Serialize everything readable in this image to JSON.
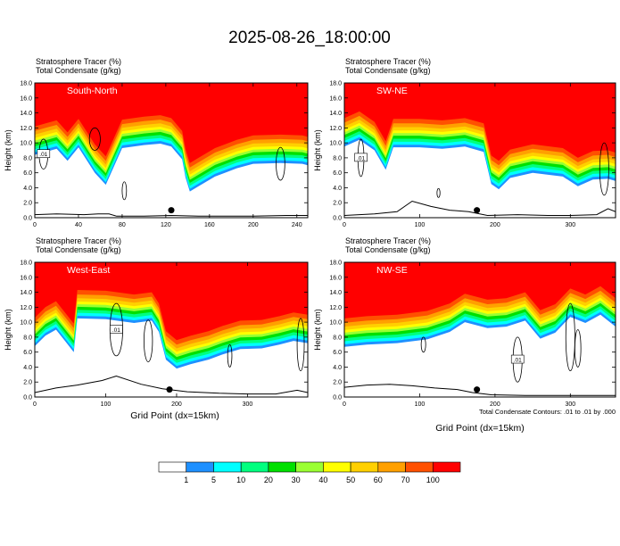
{
  "title": "2025-08-26_18:00:00",
  "colors": {
    "palette": [
      "#ffffff",
      "#1e90ff",
      "#00ffff",
      "#00ff7f",
      "#00e000",
      "#9aff32",
      "#ffff00",
      "#ffd000",
      "#ffa000",
      "#ff5000",
      "#ff0000"
    ],
    "contour": "#000000"
  },
  "colorbar": {
    "levels": [
      "1",
      "5",
      "10",
      "20",
      "30",
      "40",
      "50",
      "60",
      "70",
      "100"
    ]
  },
  "footnote": "Total Condensate Contours: .01 to .01 by .000",
  "chart_data": [
    {
      "type": "heatmap",
      "id": "sn",
      "header1": "Stratosphere Tracer   (%)",
      "header2": "Total Condensate   (g/kg)",
      "label": "South-North",
      "ylabel": "Height (km)",
      "xlabel": "",
      "xlim": [
        0,
        250
      ],
      "ylim": [
        0,
        18
      ],
      "xticks": [
        "0",
        "40",
        "80",
        "120",
        "160",
        "200",
        "240"
      ],
      "xtick_values": [
        0,
        40,
        80,
        120,
        160,
        200,
        240
      ],
      "yticks": [
        "0.0",
        "2.0",
        "4.0",
        "6.0",
        "8.0",
        "10.0",
        "12.0",
        "14.0",
        "16.0",
        "18.0"
      ],
      "tracer_base": [
        [
          0,
          12.2
        ],
        [
          10,
          12.6
        ],
        [
          20,
          13.0
        ],
        [
          30,
          11.4
        ],
        [
          40,
          13.2
        ],
        [
          55,
          9.8
        ],
        [
          65,
          8.2
        ],
        [
          80,
          13.1
        ],
        [
          100,
          13.5
        ],
        [
          115,
          13.7
        ],
        [
          125,
          13.3
        ],
        [
          135,
          11.6
        ],
        [
          138,
          9.2
        ],
        [
          142,
          7.3
        ],
        [
          150,
          8.0
        ],
        [
          165,
          9.3
        ],
        [
          185,
          10.4
        ],
        [
          200,
          11.0
        ],
        [
          225,
          11.1
        ],
        [
          245,
          11.0
        ],
        [
          250,
          10.8
        ]
      ],
      "terrain": [
        [
          0,
          0.4
        ],
        [
          20,
          0.5
        ],
        [
          45,
          0.4
        ],
        [
          58,
          0.5
        ],
        [
          68,
          0.5
        ],
        [
          75,
          0.2
        ],
        [
          100,
          0.2
        ],
        [
          125,
          0.3
        ],
        [
          150,
          0.2
        ],
        [
          175,
          0.2
        ],
        [
          200,
          0.2
        ],
        [
          230,
          0.3
        ],
        [
          250,
          0.3
        ]
      ],
      "contour_label": ".01",
      "marker_x": 125,
      "marker_y": 1.0
    },
    {
      "type": "heatmap",
      "id": "swne",
      "header1": "Stratosphere Tracer   (%)",
      "header2": "Total Condensate   (g/kg)",
      "label": "SW-NE",
      "ylabel": "Height (km)",
      "xlabel": "",
      "xlim": [
        0,
        360
      ],
      "ylim": [
        0,
        18
      ],
      "xticks": [
        "0",
        "100",
        "200",
        "300"
      ],
      "xtick_values": [
        0,
        100,
        200,
        300
      ],
      "yticks": [
        "0.0",
        "2.0",
        "4.0",
        "6.0",
        "8.0",
        "10.0",
        "12.0",
        "14.0",
        "16.0",
        "18.0"
      ],
      "tracer_base": [
        [
          0,
          13.3
        ],
        [
          20,
          14.2
        ],
        [
          40,
          12.8
        ],
        [
          55,
          10.2
        ],
        [
          65,
          13.2
        ],
        [
          100,
          13.2
        ],
        [
          130,
          13.0
        ],
        [
          160,
          13.3
        ],
        [
          185,
          12.6
        ],
        [
          195,
          8.3
        ],
        [
          205,
          7.6
        ],
        [
          220,
          9.1
        ],
        [
          250,
          9.8
        ],
        [
          290,
          9.3
        ],
        [
          310,
          8.0
        ],
        [
          330,
          8.9
        ],
        [
          350,
          9.0
        ],
        [
          360,
          8.7
        ]
      ],
      "terrain": [
        [
          0,
          0.3
        ],
        [
          40,
          0.5
        ],
        [
          70,
          0.8
        ],
        [
          90,
          2.2
        ],
        [
          115,
          1.5
        ],
        [
          140,
          1.0
        ],
        [
          165,
          0.8
        ],
        [
          190,
          0.3
        ],
        [
          230,
          0.4
        ],
        [
          270,
          0.3
        ],
        [
          300,
          0.3
        ],
        [
          335,
          0.4
        ],
        [
          350,
          1.2
        ],
        [
          360,
          0.8
        ]
      ],
      "contour_label": ".01",
      "marker_x": 176,
      "marker_y": 1.0
    },
    {
      "type": "heatmap",
      "id": "we",
      "header1": "Stratosphere Tracer   (%)",
      "header2": "Total Condensate   (g/kg)",
      "label": "West-East",
      "ylabel": "Height (km)",
      "xlabel": "",
      "xlim": [
        0,
        385
      ],
      "ylim": [
        0,
        18
      ],
      "xticks": [
        "0",
        "100",
        "200",
        "300"
      ],
      "xtick_values": [
        0,
        100,
        200,
        300
      ],
      "yticks": [
        "0.0",
        "2.0",
        "4.0",
        "6.0",
        "8.0",
        "10.0",
        "12.0",
        "14.0",
        "16.0",
        "18.0"
      ],
      "tracer_base": [
        [
          0,
          10.6
        ],
        [
          15,
          12.0
        ],
        [
          30,
          12.8
        ],
        [
          45,
          11.0
        ],
        [
          55,
          9.8
        ],
        [
          60,
          14.3
        ],
        [
          100,
          14.2
        ],
        [
          140,
          13.7
        ],
        [
          165,
          14.0
        ],
        [
          175,
          12.5
        ],
        [
          185,
          8.8
        ],
        [
          200,
          7.6
        ],
        [
          220,
          8.2
        ],
        [
          245,
          8.8
        ],
        [
          265,
          9.5
        ],
        [
          290,
          10.2
        ],
        [
          320,
          10.3
        ],
        [
          345,
          10.8
        ],
        [
          365,
          11.3
        ],
        [
          385,
          11.0
        ]
      ],
      "terrain": [
        [
          0,
          0.6
        ],
        [
          30,
          1.2
        ],
        [
          60,
          1.6
        ],
        [
          95,
          2.2
        ],
        [
          115,
          2.8
        ],
        [
          150,
          1.7
        ],
        [
          180,
          1.1
        ],
        [
          215,
          0.7
        ],
        [
          260,
          0.5
        ],
        [
          300,
          0.4
        ],
        [
          340,
          0.4
        ],
        [
          370,
          0.9
        ],
        [
          385,
          0.6
        ]
      ],
      "contour_label": ".01",
      "marker_x": 190,
      "marker_y": 1.0
    },
    {
      "type": "heatmap",
      "id": "nwse",
      "header1": "Stratosphere Tracer   (%)",
      "header2": "Total Condensate   (g/kg)",
      "label": "NW-SE",
      "ylabel": "Height (km)",
      "xlabel": "",
      "xlim": [
        0,
        360
      ],
      "ylim": [
        0,
        18
      ],
      "xticks": [
        "0",
        "100",
        "200",
        "300"
      ],
      "xtick_values": [
        0,
        100,
        200,
        300
      ],
      "yticks": [
        "0.0",
        "2.0",
        "4.0",
        "6.0",
        "8.0",
        "10.0",
        "12.0",
        "14.0",
        "16.0",
        "18.0"
      ],
      "tracer_base": [
        [
          0,
          10.5
        ],
        [
          30,
          10.8
        ],
        [
          70,
          11.0
        ],
        [
          110,
          11.5
        ],
        [
          140,
          12.5
        ],
        [
          160,
          13.8
        ],
        [
          190,
          13.0
        ],
        [
          215,
          13.2
        ],
        [
          240,
          14.0
        ],
        [
          260,
          11.6
        ],
        [
          280,
          12.4
        ],
        [
          300,
          14.5
        ],
        [
          320,
          13.7
        ],
        [
          340,
          14.8
        ],
        [
          360,
          13.2
        ]
      ],
      "terrain": [
        [
          0,
          1.3
        ],
        [
          30,
          1.6
        ],
        [
          60,
          1.7
        ],
        [
          90,
          1.5
        ],
        [
          120,
          1.2
        ],
        [
          150,
          1.0
        ],
        [
          170,
          0.6
        ],
        [
          195,
          0.3
        ],
        [
          240,
          0.2
        ],
        [
          300,
          0.2
        ],
        [
          360,
          0.2
        ]
      ],
      "contour_label": ".01",
      "marker_x": 176,
      "marker_y": 1.0
    }
  ],
  "xaxis_title": "Grid Point (dx=15km)"
}
